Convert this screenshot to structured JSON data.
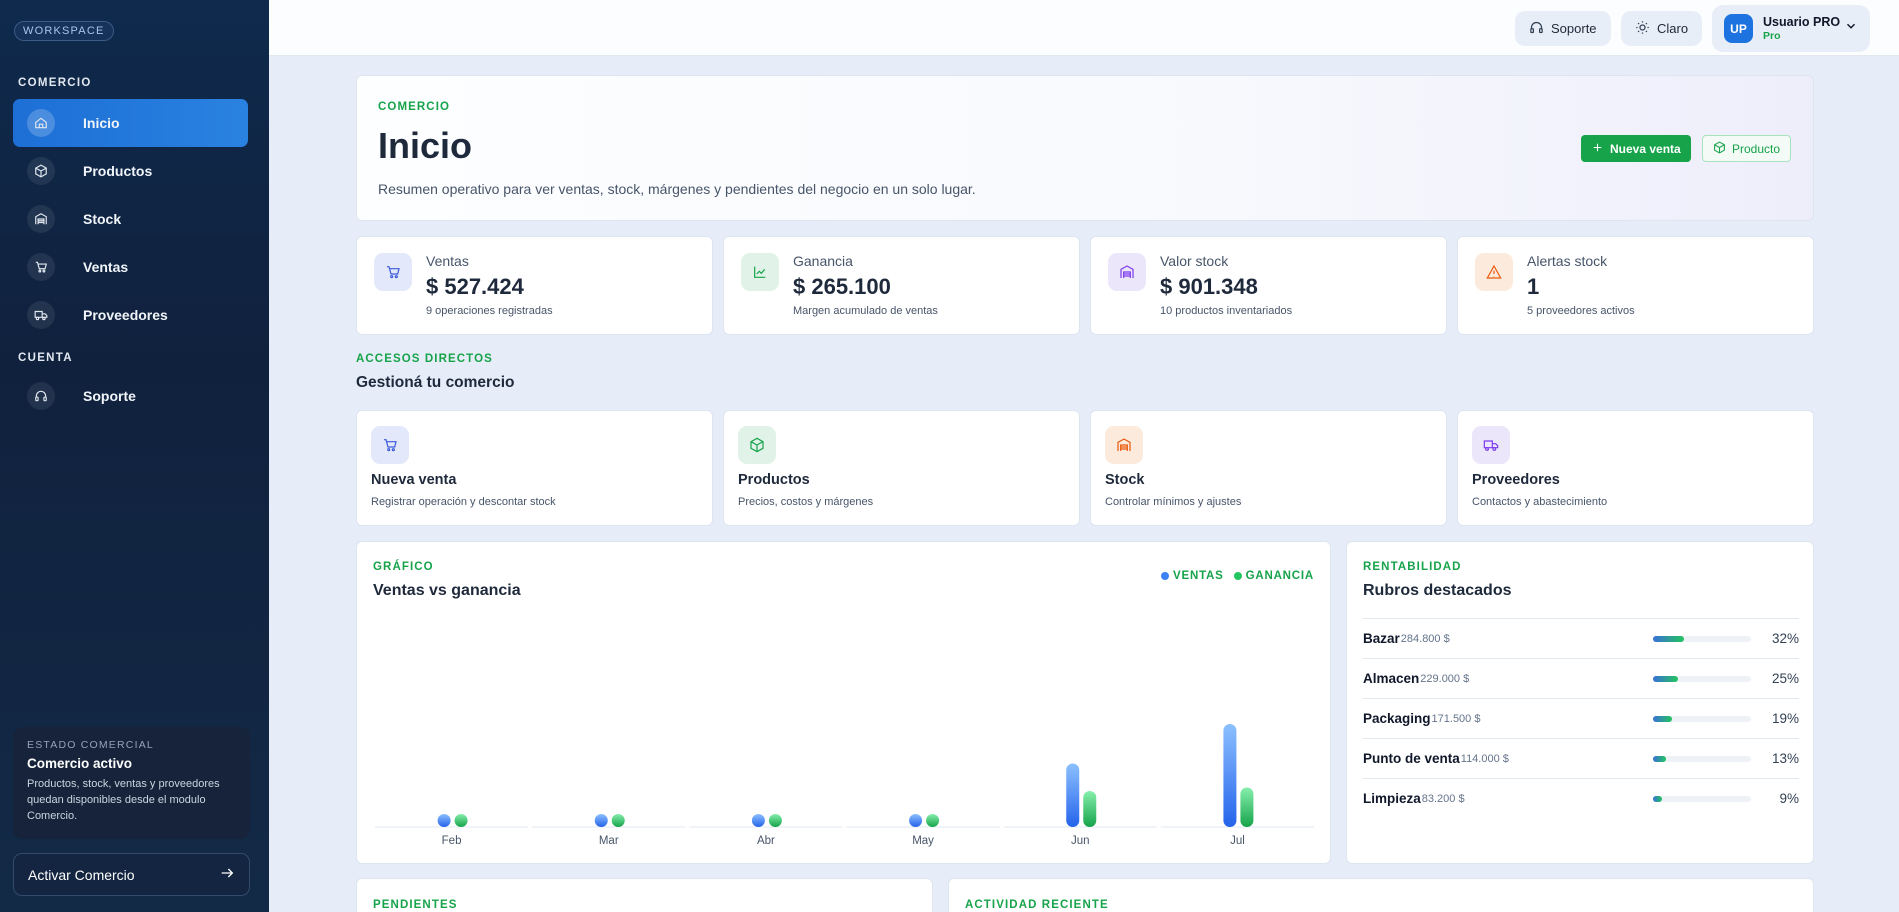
{
  "sidebar": {
    "workspace_badge": "WORKSPACE",
    "section_comercio": "COMERCIO",
    "section_cuenta": "CUENTA",
    "items": [
      {
        "label": "Inicio",
        "icon": "home-icon",
        "active": true
      },
      {
        "label": "Productos",
        "icon": "box-icon"
      },
      {
        "label": "Stock",
        "icon": "warehouse-icon"
      },
      {
        "label": "Ventas",
        "icon": "cart-icon"
      },
      {
        "label": "Proveedores",
        "icon": "truck-icon"
      }
    ],
    "account_items": [
      {
        "label": "Soporte",
        "icon": "headset-icon"
      }
    ],
    "status": {
      "label": "ESTADO COMERCIAL",
      "title": "Comercio activo",
      "desc": "Productos, stock, ventas y proveedores quedan disponibles desde el modulo Comercio."
    },
    "activate_label": "Activar Comercio"
  },
  "topbar": {
    "support_label": "Soporte",
    "theme_label": "Claro",
    "user": {
      "initials": "UP",
      "name": "Usuario PRO",
      "plan": "Pro"
    }
  },
  "hero": {
    "kicker": "COMERCIO",
    "title": "Inicio",
    "desc": "Resumen operativo para ver ventas, stock, márgenes y pendientes del negocio en un solo lugar.",
    "primary_btn": "Nueva venta",
    "secondary_btn": "Producto"
  },
  "stats": [
    {
      "label": "Ventas",
      "value": "$ 527.424",
      "sub": "9 operaciones registradas",
      "icon": "cart-icon",
      "color": "#3b5bdb"
    },
    {
      "label": "Ganancia",
      "value": "$ 265.100",
      "sub": "Margen acumulado de ventas",
      "icon": "trend-icon",
      "color": "#16a34a"
    },
    {
      "label": "Valor stock",
      "value": "$ 901.348",
      "sub": "10 productos inventariados",
      "icon": "warehouse-icon",
      "color": "#7c3aed"
    },
    {
      "label": "Alertas stock",
      "value": "1",
      "sub": "5 proveedores activos",
      "icon": "alert-icon",
      "color": "#ea580c"
    }
  ],
  "shortcuts_section": {
    "kicker": "ACCESOS DIRECTOS",
    "title": "Gestioná tu comercio"
  },
  "shortcuts": [
    {
      "title": "Nueva venta",
      "desc": "Registrar operación y descontar stock",
      "icon": "cart-icon",
      "color": "#3b5bdb"
    },
    {
      "title": "Productos",
      "desc": "Precios, costos y márgenes",
      "icon": "box-icon",
      "color": "#16a34a"
    },
    {
      "title": "Stock",
      "desc": "Controlar mínimos y ajustes",
      "icon": "warehouse-icon",
      "color": "#ea580c"
    },
    {
      "title": "Proveedores",
      "desc": "Contactos y abastecimiento",
      "icon": "truck-icon",
      "color": "#7c3aed"
    }
  ],
  "chart_card": {
    "kicker": "GRÁFICO",
    "title": "Ventas vs ganancia"
  },
  "chart_data": {
    "type": "bar",
    "categories": [
      "Feb",
      "Mar",
      "Abr",
      "May",
      "Jun",
      "Jul"
    ],
    "series": [
      {
        "name": "VENTAS",
        "values": [
          0,
          0,
          0,
          0,
          185000,
          300000
        ],
        "color": "#3b82f6"
      },
      {
        "name": "GANANCIA",
        "values": [
          0,
          0,
          0,
          0,
          105000,
          115000
        ],
        "color": "#22c55e"
      }
    ],
    "legend": "top-right",
    "grid": false
  },
  "rent_card": {
    "kicker": "RENTABILIDAD",
    "title": "Rubros destacados"
  },
  "rubros": [
    {
      "name": "Bazar",
      "amount": "284.800 $",
      "pct": "32%",
      "fill": 0.32
    },
    {
      "name": "Almacen",
      "amount": "229.000 $",
      "pct": "25%",
      "fill": 0.25
    },
    {
      "name": "Packaging",
      "amount": "171.500 $",
      "pct": "19%",
      "fill": 0.19
    },
    {
      "name": "Punto de venta",
      "amount": "114.000 $",
      "pct": "13%",
      "fill": 0.13
    },
    {
      "name": "Limpieza",
      "amount": "83.200 $",
      "pct": "9%",
      "fill": 0.09
    }
  ],
  "bottom": {
    "pendientes": "PENDIENTES",
    "actividad": "ACTIVIDAD RECIENTE"
  }
}
